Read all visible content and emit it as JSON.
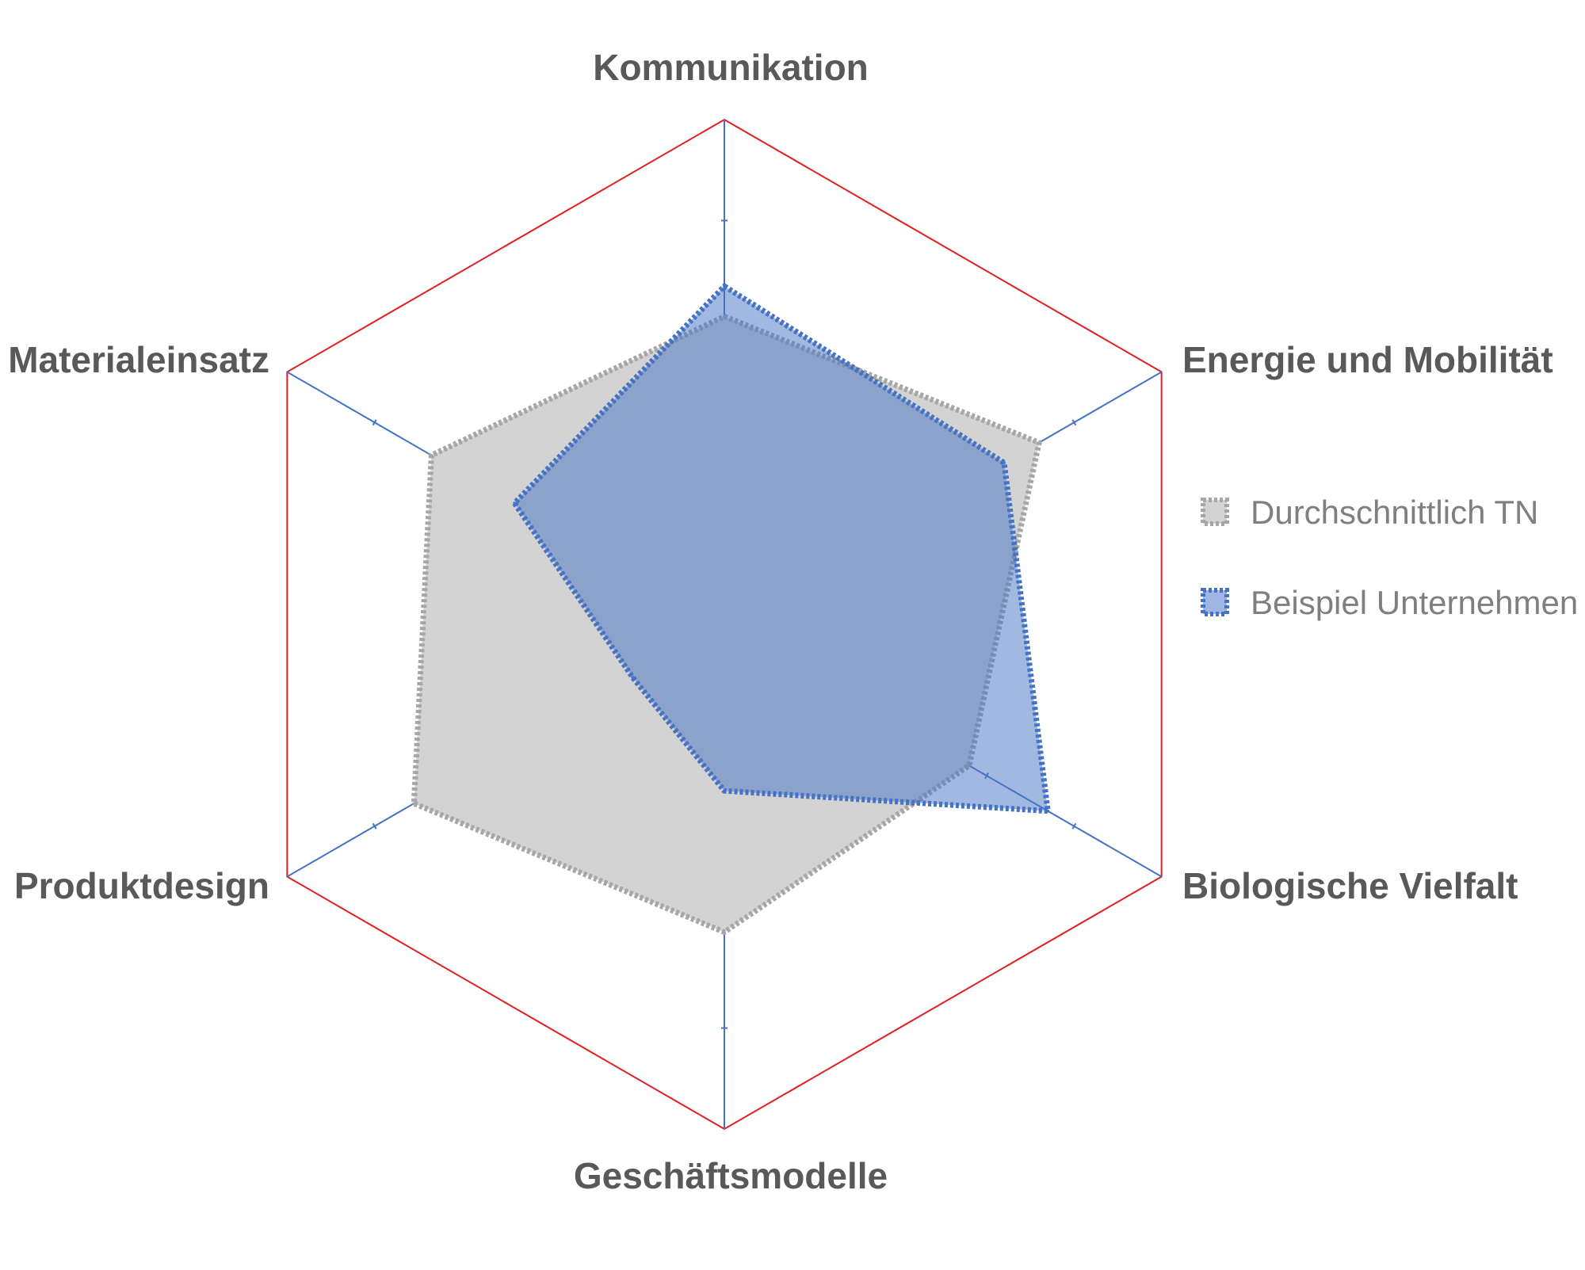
{
  "chart_data": {
    "type": "radar",
    "categories": [
      "Kommunikation",
      "Energie und Mobilität",
      "Biologische Vielfalt",
      "Geschäftsmodelle",
      "Produktdesign",
      "Materialeinsatz"
    ],
    "scale": {
      "min": 0,
      "max": 5,
      "tick_step": 1
    },
    "series": [
      {
        "name": "Durchschnittlich TN",
        "values": [
          3.05,
          3.6,
          2.8,
          3.05,
          3.55,
          3.35
        ],
        "fill": "#d3d3d3",
        "stroke": "#a6a6a6",
        "line_style": "dotted"
      },
      {
        "name": "Beispiel Unternehmen",
        "values": [
          3.35,
          3.2,
          3.7,
          1.65,
          1.05,
          2.4
        ],
        "fill": "#4472c4",
        "fill_opacity": 0.5,
        "stroke": "#4472c4",
        "line_style": "dotted"
      }
    ],
    "axis_color": "#4472c4",
    "outer_grid_color": "#e02020",
    "legend_position": "right"
  }
}
